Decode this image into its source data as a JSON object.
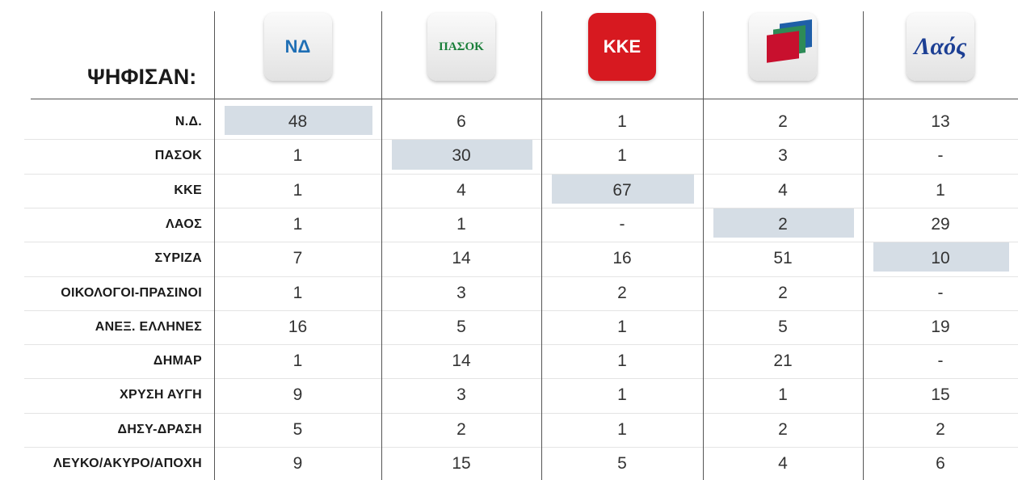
{
  "header": {
    "title": "ΨΗΦΙΣΑΝ:"
  },
  "columns": [
    {
      "logo_text": "ΝΔ",
      "color": "#1f6fb5"
    },
    {
      "logo_text": "ΠΑΣΟΚ",
      "color": "#1a7f3a"
    },
    {
      "logo_text": "ΚΚΕ",
      "color": "#d71920"
    },
    {
      "logo_text": null,
      "color": "#c8102e"
    },
    {
      "logo_text": "Λαός",
      "color": "#1c3f94"
    }
  ],
  "table": {
    "rows": [
      [
        "Ν.Δ.",
        48,
        6,
        1,
        2,
        13
      ],
      [
        "ΠΑΣΟΚ",
        1,
        30,
        1,
        3,
        "-"
      ],
      [
        "ΚΚΕ",
        1,
        4,
        67,
        4,
        1
      ],
      [
        "ΛΑΟΣ",
        1,
        1,
        "-",
        2,
        29
      ],
      [
        "ΣΥΡΙΖΑ",
        7,
        14,
        16,
        51,
        10
      ],
      [
        "ΟΙΚΟΛΟΓΟΙ-ΠΡΑΣΙΝΟΙ",
        1,
        3,
        2,
        2,
        "-"
      ],
      [
        "ΑΝΕΞ. ΕΛΛΗΝΕΣ",
        16,
        5,
        1,
        5,
        19
      ],
      [
        "ΔΗΜΑΡ",
        1,
        14,
        1,
        21,
        "-"
      ],
      [
        "ΧΡΥΣΗ ΑΥΓΗ",
        9,
        3,
        1,
        1,
        15
      ],
      [
        "ΔΗΣΥ-ΔΡΑΣΗ",
        5,
        2,
        1,
        2,
        2
      ],
      [
        "ΛΕΥΚΟ/ΑΚΥΡΟ/ΑΠΟΧΗ",
        9,
        15,
        5,
        4,
        6
      ]
    ],
    "highlighted_cells": [
      [
        0,
        1
      ],
      [
        1,
        2
      ],
      [
        2,
        3
      ],
      [
        3,
        4
      ],
      [
        4,
        5
      ]
    ],
    "highlight_color": "#d5dde5"
  }
}
